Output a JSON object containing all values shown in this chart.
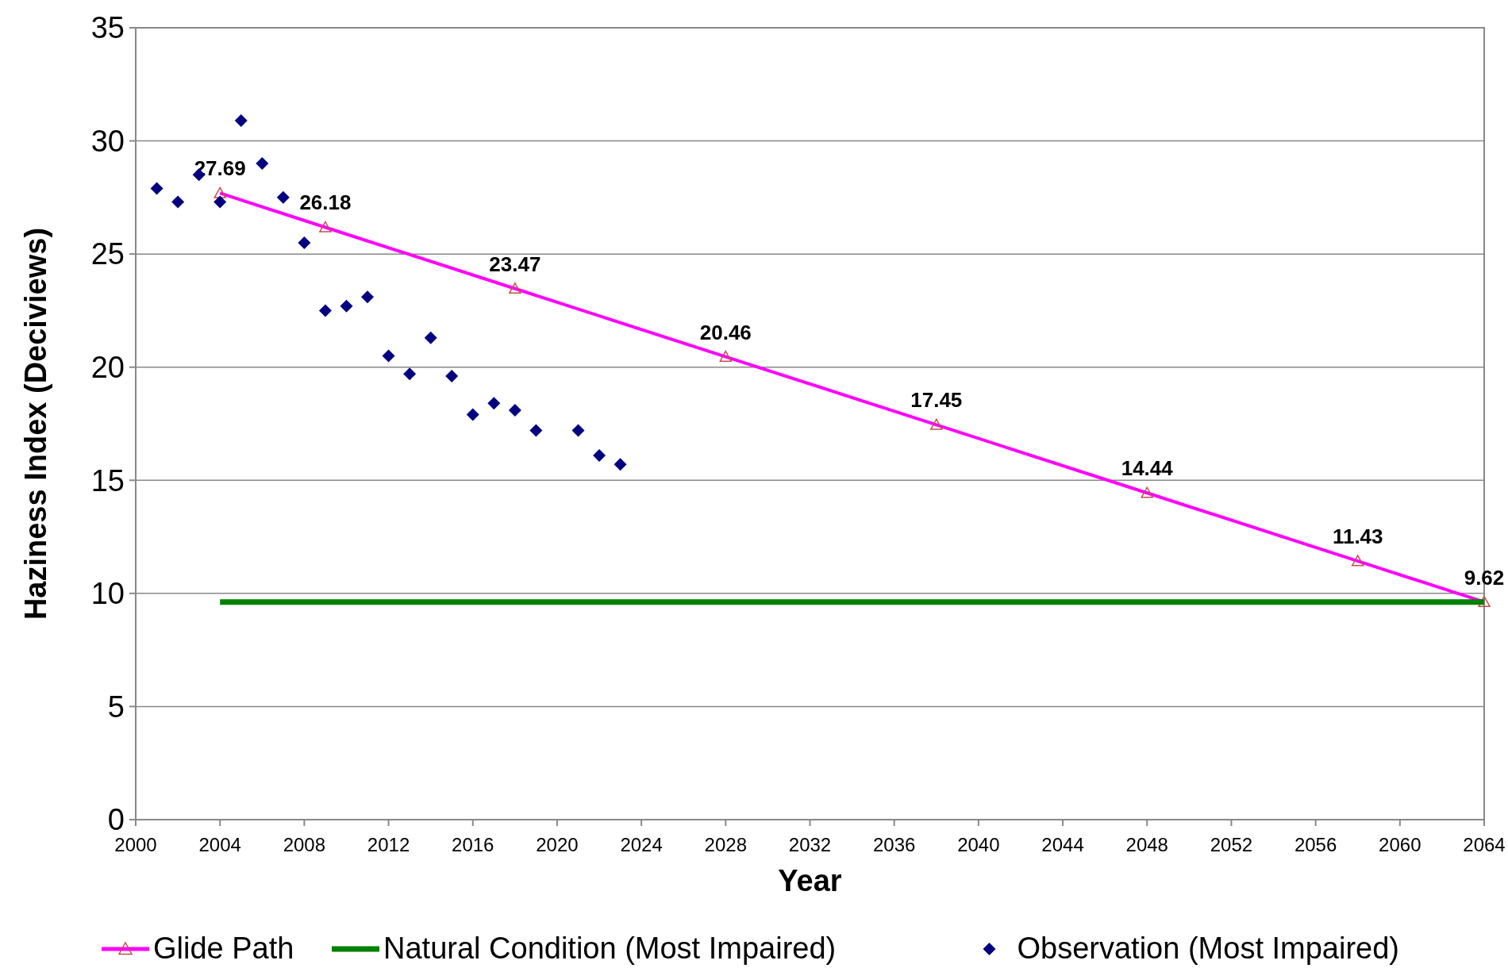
{
  "chart_data": {
    "type": "line",
    "xlabel": "Year",
    "ylabel": "Haziness Index (Deciviews)",
    "xlim": [
      2000,
      2064
    ],
    "xticks": [
      2000,
      2004,
      2008,
      2012,
      2016,
      2020,
      2024,
      2028,
      2032,
      2036,
      2040,
      2044,
      2048,
      2052,
      2056,
      2060,
      2064
    ],
    "ylim": [
      0,
      35
    ],
    "yticks": [
      0,
      5,
      10,
      15,
      20,
      25,
      30,
      35
    ],
    "grid": "y",
    "legend": "bottom",
    "series": [
      {
        "name": "Glide Path",
        "color": "#ff00ff",
        "marker": "triangle",
        "x": [
          2004,
          2009,
          2018,
          2028,
          2038,
          2048,
          2058,
          2064
        ],
        "values": [
          27.69,
          26.18,
          23.47,
          20.46,
          17.45,
          14.44,
          11.43,
          9.62
        ],
        "value_labels": [
          "27.69",
          "26.18",
          "23.47",
          "20.46",
          "17.45",
          "14.44",
          "11.43",
          "9.62"
        ]
      },
      {
        "name": "Natural Condition (Most Impaired)",
        "color": "#008000",
        "marker": "none",
        "x": [
          2004,
          2064
        ],
        "values": [
          9.62,
          9.62
        ]
      },
      {
        "name": "Observation (Most Impaired)",
        "type": "scatter",
        "color": "#000080",
        "marker": "diamond",
        "x": [
          2001,
          2002,
          2003,
          2004,
          2005,
          2006,
          2007,
          2008,
          2009,
          2010,
          2011,
          2012,
          2013,
          2014,
          2015,
          2016,
          2017,
          2018,
          2019,
          2021,
          2022,
          2023
        ],
        "values": [
          27.9,
          27.3,
          28.5,
          27.3,
          30.9,
          29.0,
          27.5,
          25.5,
          22.5,
          22.7,
          23.1,
          20.5,
          19.7,
          21.3,
          19.6,
          17.9,
          18.4,
          18.1,
          17.2,
          17.2,
          16.1,
          15.7
        ]
      }
    ]
  }
}
